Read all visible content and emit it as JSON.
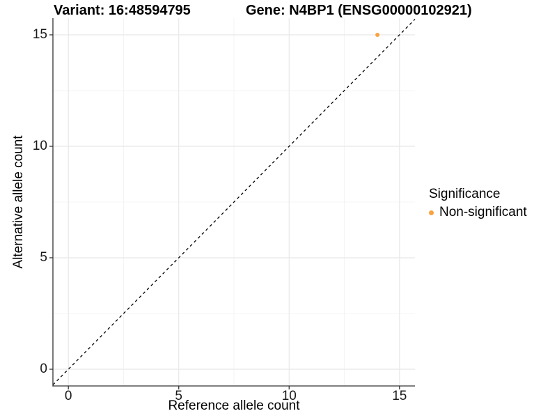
{
  "figure": {
    "title_variant": "Variant: 16:48594795",
    "title_gene": "Gene: N4BP1 (ENSG00000102921)"
  },
  "chart_data": {
    "type": "scatter",
    "title_left": "Variant: 16:48594795",
    "title_right": "Gene: N4BP1 (ENSG00000102921)",
    "xlabel": "Reference allele count",
    "ylabel": "Alternative allele count",
    "xlim": [
      -0.7,
      15.7
    ],
    "ylim": [
      -0.75,
      15.75
    ],
    "x_ticks": [
      0,
      5,
      10,
      15
    ],
    "y_ticks": [
      0,
      5,
      10,
      15
    ],
    "x_minor_ticks": [
      2.5,
      7.5,
      12.5
    ],
    "y_minor_ticks": [
      2.5,
      7.5,
      12.5
    ],
    "grid": "major and minor, light gray, on white panel",
    "series": [
      {
        "name": "Non-significant",
        "color": "#F9A242",
        "points": [
          {
            "x": 14,
            "y": 15
          }
        ]
      }
    ],
    "reference_line": {
      "kind": "identity y=x",
      "style": "dashed",
      "color": "#000000"
    },
    "legend": {
      "title": "Significance",
      "position": "right",
      "items": [
        {
          "label": "Non-significant",
          "color": "#F9A242"
        }
      ]
    },
    "colors": {
      "point": "#F9A242",
      "grid_major": "#e8e8e8",
      "grid_minor": "#f2f2f2",
      "axis_line": "#333333",
      "tick_text": "#1a1a1a"
    }
  }
}
